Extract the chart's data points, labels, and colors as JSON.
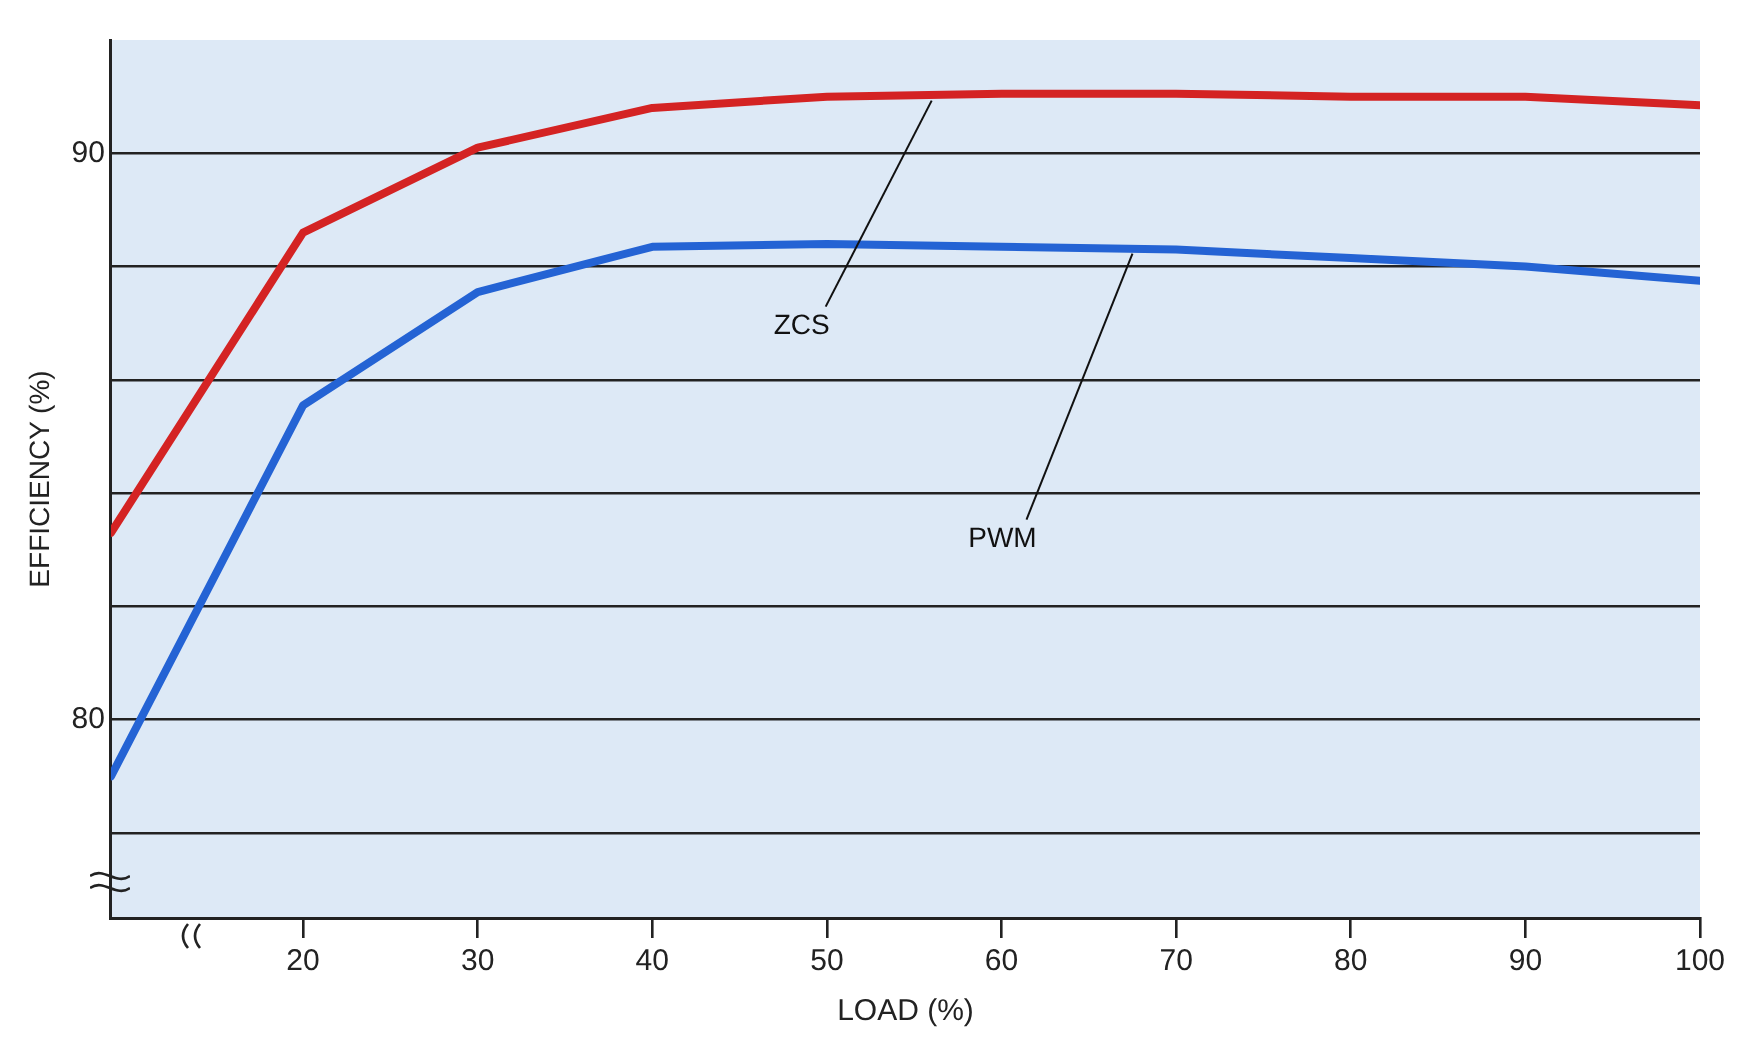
{
  "chart_data": {
    "type": "line",
    "xlabel": "LOAD (%)",
    "ylabel": "EFFICIENCY (%)",
    "xlim": [
      9,
      100
    ],
    "ylim": [
      76.5,
      92
    ],
    "xticks": [
      20,
      30,
      40,
      50,
      60,
      70,
      80,
      90,
      100
    ],
    "yticks": [
      {
        "value": 78,
        "label": null
      },
      {
        "value": 80,
        "label": "80"
      },
      {
        "value": 82,
        "label": null
      },
      {
        "value": 84,
        "label": null
      },
      {
        "value": 86,
        "label": null
      },
      {
        "value": 88,
        "label": null
      },
      {
        "value": 90,
        "label": "90"
      }
    ],
    "grid": "y",
    "marker": "none",
    "line_style": "solid",
    "series": [
      {
        "color": "#d42323",
        "x": [
          9,
          20,
          30,
          40,
          50,
          60,
          70,
          80,
          90,
          100
        ],
        "values": [
          83.3,
          88.6,
          90.1,
          90.8,
          91.0,
          91.05,
          91.05,
          91.0,
          91.0,
          90.85
        ]
      },
      {
        "color": "#2463d4",
        "x": [
          9,
          20,
          30,
          40,
          50,
          60,
          70,
          80,
          90,
          100
        ],
        "values": [
          79.0,
          85.55,
          87.55,
          88.35,
          88.4,
          88.35,
          88.3,
          88.15,
          88.0,
          87.75
        ]
      }
    ],
    "annotations": [
      {
        "text": "ZCS",
        "x": 56,
        "y": 91.0
      },
      {
        "text": "PWM",
        "x": 67.5,
        "y": 88.3
      }
    ]
  }
}
